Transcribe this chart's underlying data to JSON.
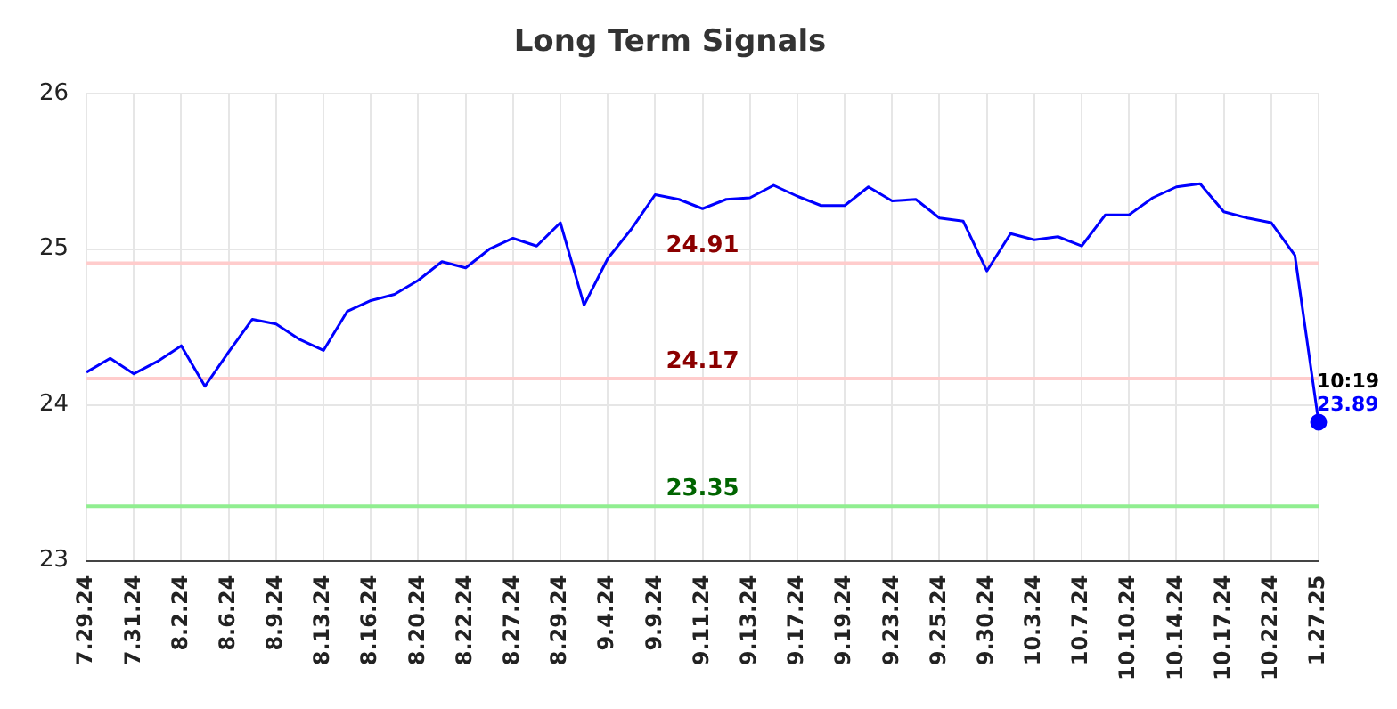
{
  "chart_data": {
    "type": "line",
    "title": "Long Term Signals",
    "categories": [
      "7.29.24",
      null,
      "7.31.24",
      null,
      "8.2.24",
      null,
      "8.6.24",
      null,
      "8.9.24",
      null,
      "8.13.24",
      null,
      "8.16.24",
      null,
      "8.20.24",
      null,
      "8.22.24",
      null,
      "8.27.24",
      null,
      "8.29.24",
      null,
      "9.4.24",
      null,
      "9.9.24",
      null,
      "9.11.24",
      null,
      "9.13.24",
      null,
      "9.17.24",
      null,
      "9.19.24",
      null,
      "9.23.24",
      null,
      "9.25.24",
      null,
      "9.30.24",
      null,
      "10.3.24",
      null,
      "10.7.24",
      null,
      "10.10.24",
      null,
      "10.14.24",
      null,
      "10.17.24",
      null,
      "10.22.24",
      null,
      "1.27.25"
    ],
    "series": [
      {
        "color": "#0000ff",
        "values": [
          24.21,
          24.3,
          24.2,
          24.28,
          24.38,
          24.12,
          24.34,
          24.55,
          24.52,
          24.42,
          24.35,
          24.6,
          24.67,
          24.71,
          24.8,
          24.92,
          24.88,
          25.0,
          25.07,
          25.02,
          25.17,
          24.64,
          24.94,
          25.13,
          25.35,
          25.32,
          25.26,
          25.32,
          25.33,
          25.41,
          25.34,
          25.28,
          25.28,
          25.4,
          25.31,
          25.32,
          25.2,
          25.18,
          24.86,
          25.1,
          25.06,
          25.08,
          25.02,
          25.22,
          25.22,
          25.33,
          25.4,
          25.42,
          25.24,
          25.2,
          25.17,
          24.96,
          23.89
        ],
        "value_labels": [
          null,
          null,
          null,
          null,
          null,
          null,
          null,
          null,
          null,
          null,
          null,
          null,
          null,
          null,
          null,
          null,
          null,
          null,
          null,
          null,
          null,
          null,
          null,
          null,
          null,
          null,
          null,
          null,
          null,
          null,
          null,
          null,
          null,
          null,
          null,
          null,
          null,
          null,
          null,
          null,
          null,
          null,
          null,
          null,
          null,
          null,
          null,
          null,
          null,
          null,
          null,
          null,
          "23.89"
        ]
      }
    ],
    "ylim": [
      23,
      26
    ],
    "yticks": [
      23,
      24,
      25,
      26
    ],
    "grid": true,
    "legend": false,
    "ref_lines": [
      {
        "axis": "y",
        "value": 24.91,
        "label": "24.91",
        "color": "#ffcccc"
      },
      {
        "axis": "y",
        "value": 24.17,
        "label": "24.17",
        "color": "#ffcccc"
      },
      {
        "axis": "y",
        "value": 23.35,
        "label": "23.35",
        "color": "#90ee90"
      }
    ],
    "annotations": [
      {
        "text": "10:19",
        "x": "1.27.25",
        "y": 23.89
      }
    ]
  }
}
